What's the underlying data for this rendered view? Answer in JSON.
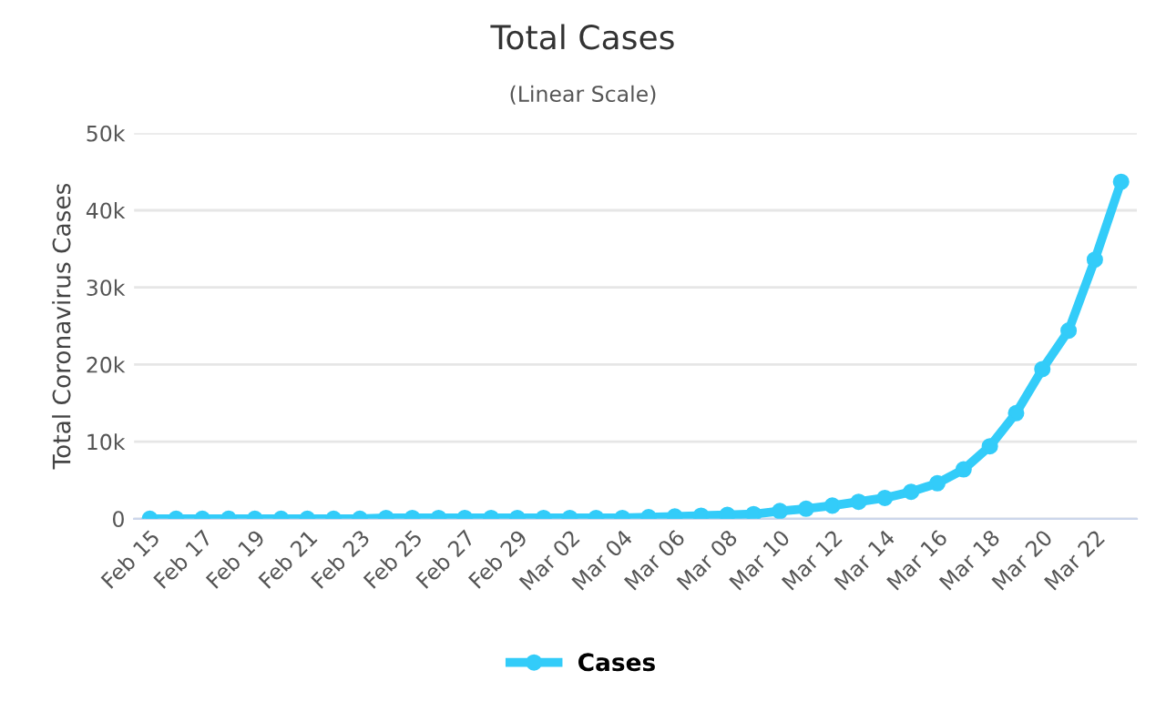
{
  "chart_data": {
    "type": "line",
    "title": "Total Cases",
    "subtitle": "(Linear Scale)",
    "ylabel": "Total Coronavirus Cases",
    "categories": [
      "Feb 15",
      null,
      "Feb 17",
      null,
      "Feb 19",
      null,
      "Feb 21",
      null,
      "Feb 23",
      null,
      "Feb 25",
      null,
      "Feb 27",
      null,
      "Feb 29",
      null,
      "Mar 02",
      null,
      "Mar 04",
      null,
      "Mar 06",
      null,
      "Mar 08",
      null,
      "Mar 10",
      null,
      "Mar 12",
      null,
      "Mar 14",
      null,
      "Mar 16",
      null,
      "Mar 18",
      null,
      "Mar 20",
      null,
      "Mar 22",
      null
    ],
    "series": [
      {
        "name": "Cases",
        "color": "#33ccf9",
        "values": [
          0,
          0,
          0,
          0,
          0,
          0,
          0,
          0,
          0,
          100,
          100,
          100,
          100,
          100,
          100,
          100,
          100,
          100,
          100,
          200,
          300,
          400,
          500,
          600,
          1000,
          1300,
          1700,
          2200,
          2700,
          3500,
          4600,
          6400,
          9400,
          13700,
          19400,
          24400,
          33600,
          43700
        ]
      }
    ],
    "ylim": [
      0,
      50000
    ],
    "yticks": [
      {
        "value": 0,
        "label": "0"
      },
      {
        "value": 10000,
        "label": "10k"
      },
      {
        "value": 20000,
        "label": "20k"
      },
      {
        "value": 30000,
        "label": "30k"
      },
      {
        "value": 40000,
        "label": "40k"
      },
      {
        "value": 50000,
        "label": "50k"
      }
    ],
    "grid": "y",
    "legend": "bottom",
    "marker": "circle",
    "line_style": "solid"
  }
}
